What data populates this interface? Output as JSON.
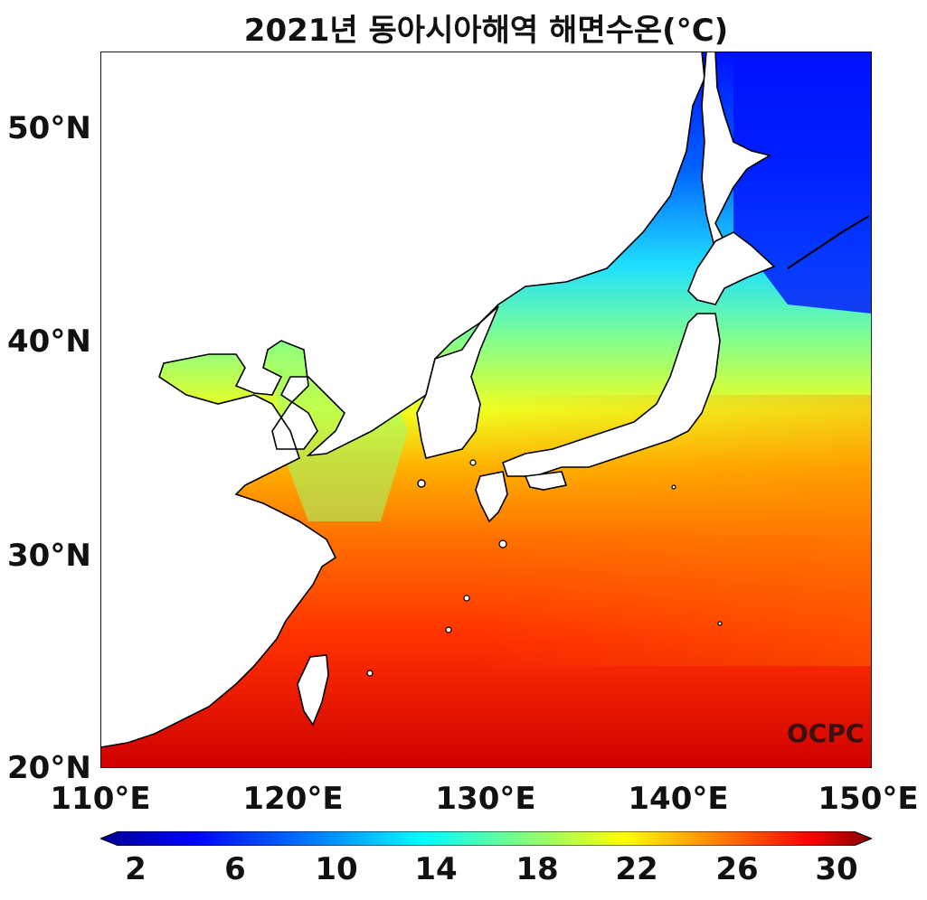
{
  "title": "2021년 동아시아해역 해면수온(°C)",
  "watermark": "OCPC",
  "lat_labels": [
    "50°N",
    "40°N",
    "30°N",
    "20°N"
  ],
  "lon_labels": [
    "110°E",
    "120°E",
    "130°E",
    "140°E",
    "150°E"
  ],
  "colorbar": {
    "labels": [
      "2",
      "6",
      "10",
      "14",
      "18",
      "22",
      "26",
      "30"
    ],
    "min": 2,
    "max": 30,
    "colors": [
      "#00008f",
      "#0000ff",
      "#0080ff",
      "#00ffff",
      "#80ff80",
      "#ffff00",
      "#ff8000",
      "#ff0000",
      "#800000"
    ]
  },
  "extent": {
    "lon": [
      110,
      150
    ],
    "lat": [
      20,
      53.5
    ]
  }
}
